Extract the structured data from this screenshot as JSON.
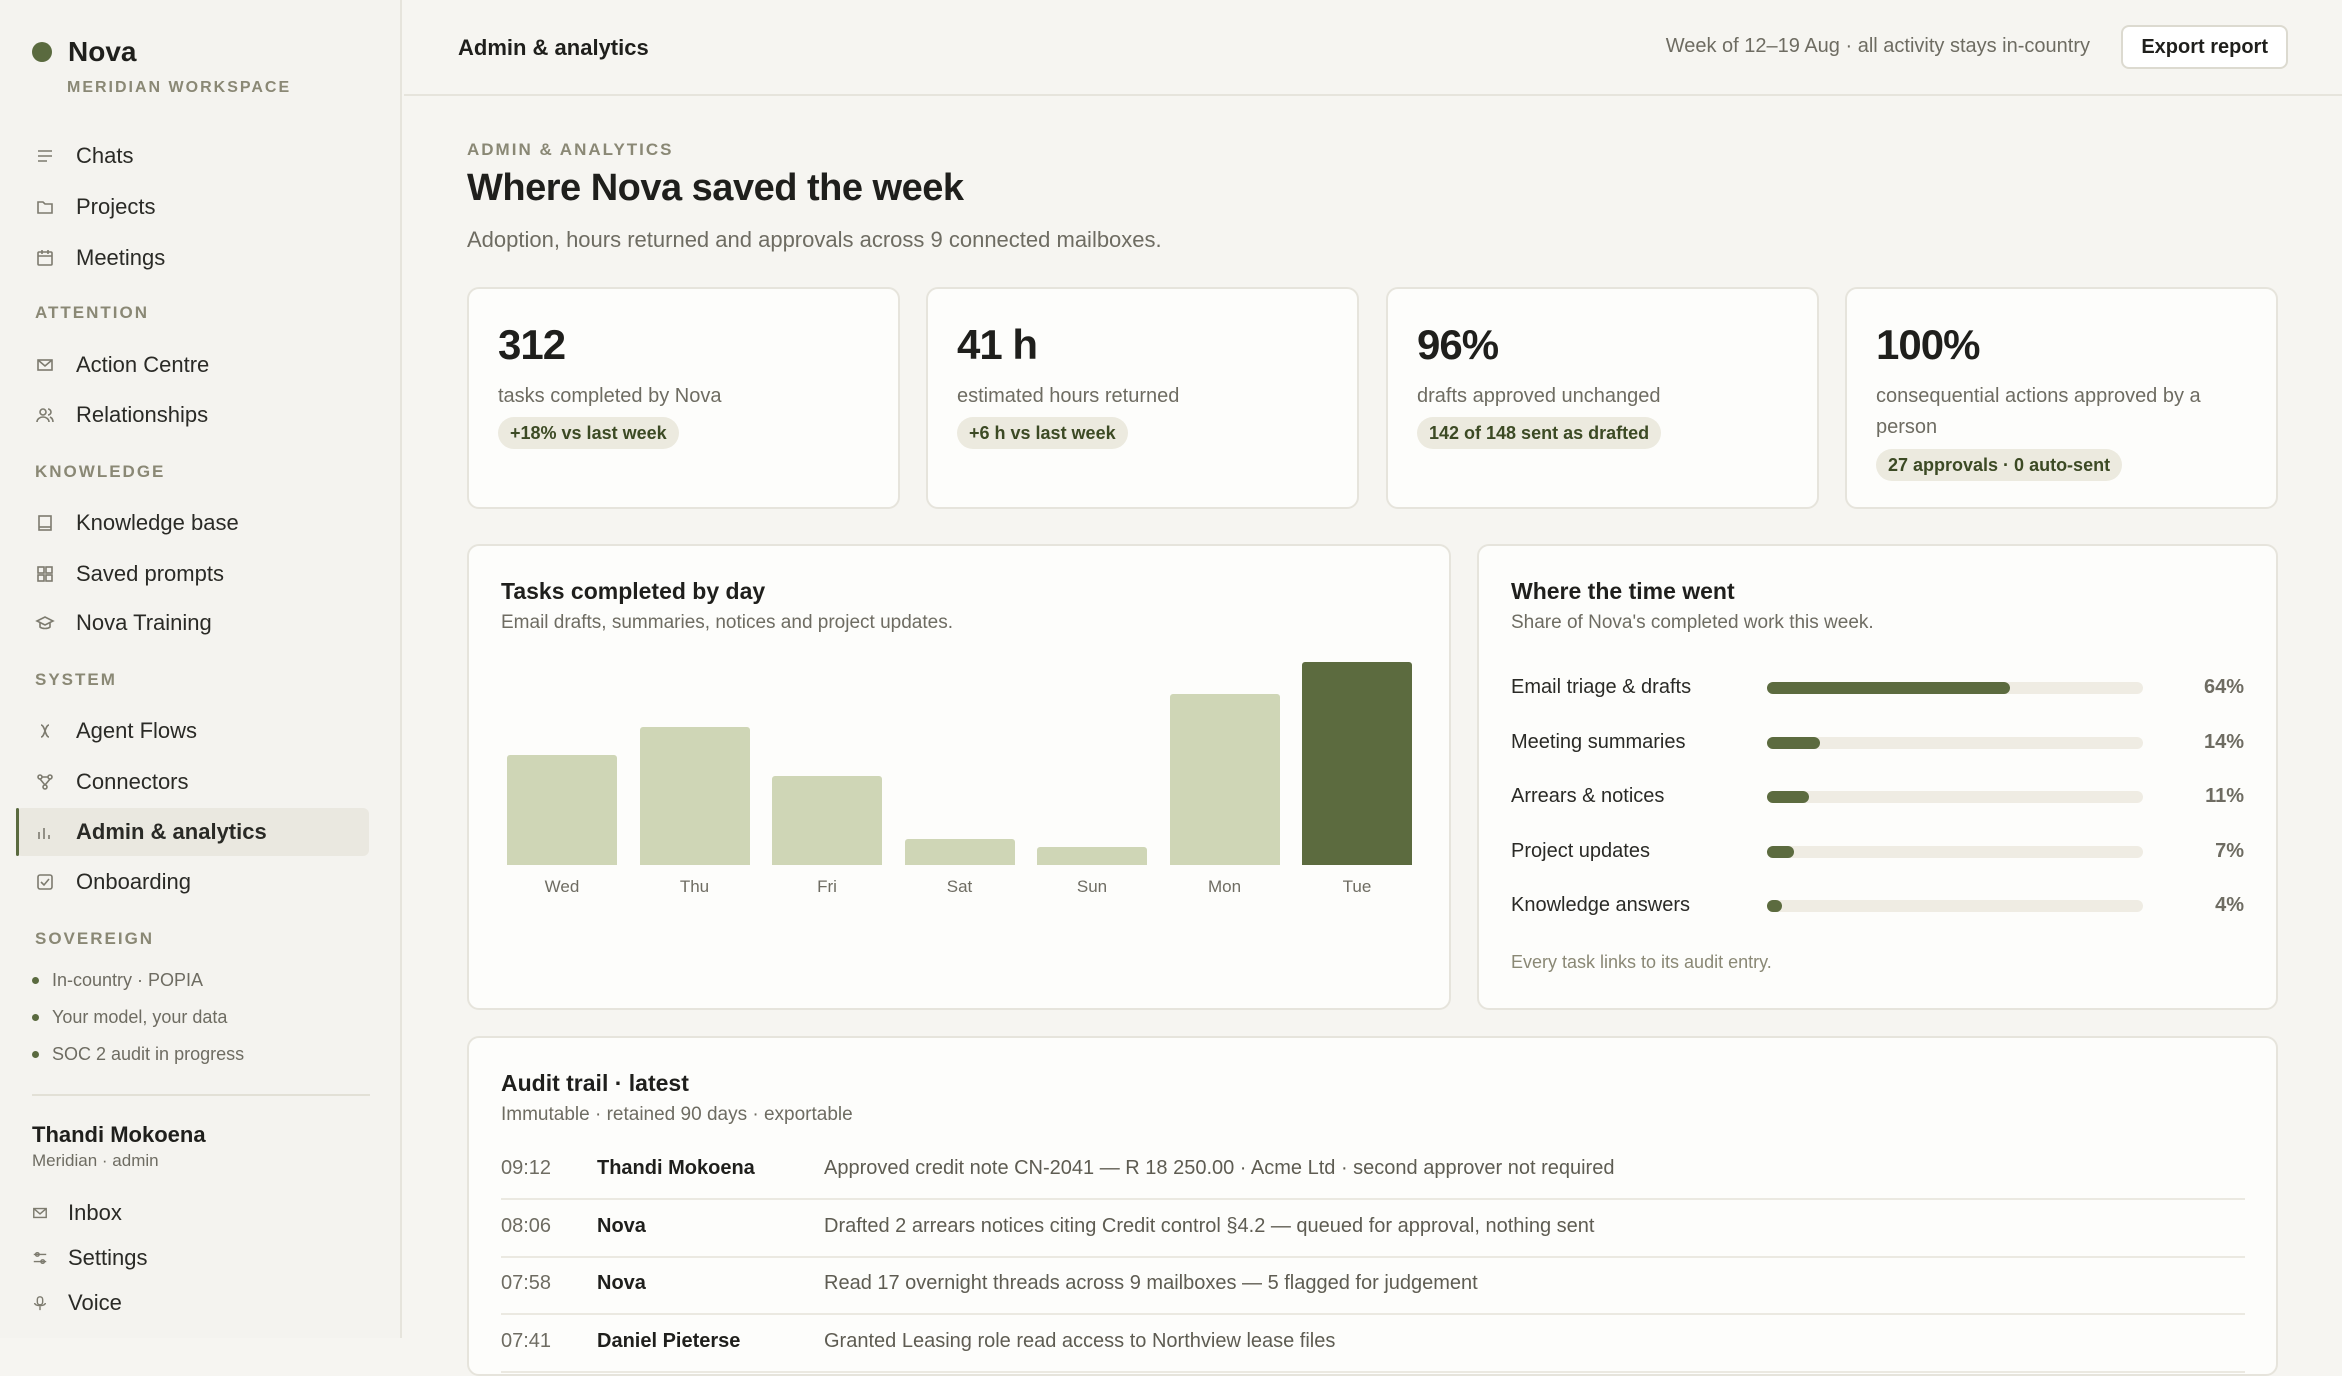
{
  "brand": {
    "name": "Nova",
    "workspace": "MERIDIAN WORKSPACE"
  },
  "sidebar": {
    "top_items": [
      {
        "label": "Chats",
        "icon": "list-icon"
      },
      {
        "label": "Projects",
        "icon": "folder-icon"
      },
      {
        "label": "Meetings",
        "icon": "calendar-icon"
      }
    ],
    "sections": {
      "attention": "ATTENTION",
      "knowledge": "KNOWLEDGE",
      "system": "SYSTEM",
      "sovereign": "SOVEREIGN"
    },
    "attention_items": [
      {
        "label": "Action Centre",
        "icon": "mail-icon"
      },
      {
        "label": "Relationships",
        "icon": "people-icon"
      }
    ],
    "knowledge_items": [
      {
        "label": "Knowledge base",
        "icon": "book-icon"
      },
      {
        "label": "Saved prompts",
        "icon": "grid-icon"
      },
      {
        "label": "Nova Training",
        "icon": "graduation-cap-icon"
      }
    ],
    "system_items": [
      {
        "label": "Agent Flows",
        "icon": "flow-icon"
      },
      {
        "label": "Connectors",
        "icon": "connector-icon"
      },
      {
        "label": "Admin & analytics",
        "icon": "bar-chart-icon",
        "active": true
      },
      {
        "label": "Onboarding",
        "icon": "checkbox-icon"
      }
    ],
    "sovereign_items": [
      "In-country · POPIA",
      "Your model, your data",
      "SOC 2 audit in progress"
    ],
    "user": {
      "name": "Thandi Mokoena",
      "role": "Meridian · admin"
    },
    "footer_items": [
      {
        "label": "Inbox",
        "icon": "inbox-icon"
      },
      {
        "label": "Settings",
        "icon": "sliders-icon"
      },
      {
        "label": "Voice",
        "icon": "microphone-icon"
      }
    ]
  },
  "topbar": {
    "title": "Admin & analytics",
    "meta": "Week of 12–19 Aug · all activity stays in-country",
    "export_label": "Export report"
  },
  "header": {
    "eyebrow": "ADMIN & ANALYTICS",
    "title": "Where Nova saved the week",
    "subtitle": "Adoption, hours returned and approvals across 9 connected mailboxes."
  },
  "kpis": [
    {
      "value": "312",
      "label": "tasks completed by Nova",
      "pill": "+18% vs last week"
    },
    {
      "value": "41 h",
      "label": "estimated hours returned",
      "pill": "+6 h vs last week"
    },
    {
      "value": "96%",
      "label": "drafts approved unchanged",
      "pill": "142 of 148 sent as drafted"
    },
    {
      "value": "100%",
      "label": "consequential actions approved by a person",
      "pill": "27 approvals · 0 auto-sent"
    }
  ],
  "chart_data": {
    "type": "bar",
    "title": "Tasks completed by day",
    "subtitle": "Email drafts, summaries, notices and project updates.",
    "categories": [
      "Wed",
      "Thu",
      "Fri",
      "Sat",
      "Sun",
      "Mon",
      "Tue"
    ],
    "values": [
      54,
      68,
      44,
      13,
      9,
      84,
      100
    ],
    "highlight_category": "Tue",
    "ylim": [
      0,
      100
    ],
    "colors": {
      "default": "#cfd6b6",
      "highlight": "#5c6b3f"
    }
  },
  "time_breakdown": {
    "title": "Where the time went",
    "subtitle": "Share of Nova's completed work this week.",
    "rows": [
      {
        "label": "Email triage & drafts",
        "pct": "64%",
        "value": 64
      },
      {
        "label": "Meeting summaries",
        "pct": "14%",
        "value": 14
      },
      {
        "label": "Arrears & notices",
        "pct": "11%",
        "value": 11
      },
      {
        "label": "Project updates",
        "pct": "7%",
        "value": 7
      },
      {
        "label": "Knowledge answers",
        "pct": "4%",
        "value": 4
      }
    ],
    "footnote": "Every task links to its audit entry."
  },
  "audit": {
    "title": "Audit trail · latest",
    "subtitle": "Immutable · retained 90 days · exportable",
    "rows": [
      {
        "time": "09:12",
        "actor": "Thandi Mokoena",
        "desc": "Approved credit note CN-2041 — R 18 250.00 · Acme Ltd · second approver not required"
      },
      {
        "time": "08:06",
        "actor": "Nova",
        "desc": "Drafted 2 arrears notices citing Credit control §4.2 — queued for approval, nothing sent"
      },
      {
        "time": "07:58",
        "actor": "Nova",
        "desc": "Read 17 overnight threads across 9 mailboxes — 5 flagged for judgement"
      },
      {
        "time": "07:41",
        "actor": "Daniel Pieterse",
        "desc": "Granted Leasing role read access to Northview lease files"
      }
    ]
  }
}
